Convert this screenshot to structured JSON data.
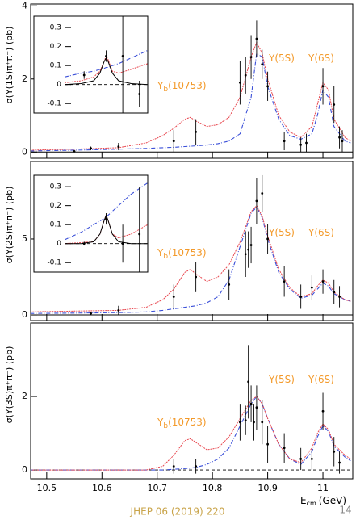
{
  "chart_data": [
    {
      "type": "scatter",
      "ylabel": "σ(Υ(1S)π⁺π⁻) (pb)",
      "ylim": [
        -0.17,
        4.05
      ],
      "yticks": [
        0,
        2,
        4
      ],
      "points": {
        "color": "#000000",
        "x": [
          10.55,
          10.58,
          10.63,
          10.73,
          10.77,
          10.85,
          10.86,
          10.87,
          10.88,
          10.89,
          10.9,
          10.93,
          10.96,
          10.97,
          11.0,
          11.02,
          11.03,
          11.035
        ],
        "values": [
          0.02,
          0.1,
          0.15,
          0.3,
          0.55,
          1.9,
          2.1,
          2.6,
          3.1,
          2.4,
          1.8,
          0.3,
          0.2,
          0.25,
          1.8,
          1.3,
          0.4,
          0.3
        ],
        "errors": [
          0.03,
          0.05,
          0.1,
          0.3,
          0.35,
          0.6,
          0.5,
          0.6,
          0.5,
          0.4,
          0.4,
          0.25,
          0.2,
          0.25,
          0.5,
          0.5,
          0.3,
          0.3
        ]
      },
      "fit": {
        "color": "#e8474f",
        "x": [
          10.47,
          10.55,
          10.63,
          10.68,
          10.71,
          10.73,
          10.75,
          10.76,
          10.77,
          10.79,
          10.81,
          10.83,
          10.85,
          10.87,
          10.88,
          10.89,
          10.9,
          10.92,
          10.94,
          10.96,
          10.98,
          10.99,
          11.0,
          11.01,
          11.02,
          11.04,
          11.05
        ],
        "values": [
          0.05,
          0.08,
          0.12,
          0.25,
          0.45,
          0.65,
          0.9,
          0.95,
          0.85,
          0.7,
          0.75,
          0.95,
          1.5,
          2.6,
          3.0,
          2.7,
          2.0,
          1.0,
          0.55,
          0.4,
          0.7,
          1.3,
          1.9,
          1.7,
          0.9,
          0.4,
          0.3
        ]
      },
      "background": {
        "color": "#3a4fd8",
        "x": [
          10.47,
          10.55,
          10.63,
          10.68,
          10.71,
          10.73,
          10.75,
          10.76,
          10.77,
          10.79,
          10.81,
          10.83,
          10.85,
          10.87,
          10.88,
          10.89,
          10.9,
          10.92,
          10.94,
          10.96,
          10.98,
          10.99,
          11.0,
          11.01,
          11.02,
          11.04,
          11.05
        ],
        "values": [
          0.03,
          0.05,
          0.08,
          0.1,
          0.12,
          0.13,
          0.15,
          0.16,
          0.17,
          0.19,
          0.23,
          0.3,
          0.5,
          1.5,
          2.7,
          2.6,
          1.8,
          0.9,
          0.45,
          0.35,
          0.5,
          1.0,
          1.7,
          1.5,
          0.7,
          0.3,
          0.25
        ]
      },
      "annotations": [
        {
          "text": "Y",
          "sub": "b",
          "tail": "(10753)"
        },
        {
          "text": "Υ(5S)"
        },
        {
          "text": "Υ(6S)"
        }
      ]
    },
    {
      "type": "scatter",
      "xlim": [
        10.48,
        10.68
      ],
      "ylim": [
        -0.15,
        0.36
      ],
      "yticks": [
        0.3,
        0.2,
        0.1,
        0,
        -0.1
      ],
      "points": {
        "color": "#000000",
        "x": [
          10.527,
          10.58,
          10.62,
          10.66
        ],
        "values": [
          0.05,
          0.15,
          0.15,
          -0.05
        ],
        "errors": [
          0.02,
          0.03,
          0.35,
          0.07
        ]
      },
      "fit": {
        "color": "#e8474f",
        "x": [
          10.48,
          10.52,
          10.55,
          10.565,
          10.575,
          10.58,
          10.585,
          10.595,
          10.61,
          10.64,
          10.68
        ],
        "values": [
          0.01,
          0.02,
          0.04,
          0.07,
          0.12,
          0.15,
          0.13,
          0.07,
          0.06,
          0.08,
          0.11
        ]
      },
      "background": {
        "color": "#3a4fd8",
        "x": [
          10.48,
          10.52,
          10.55,
          10.565,
          10.575,
          10.58,
          10.585,
          10.595,
          10.61,
          10.64,
          10.68
        ],
        "values": [
          0.04,
          0.06,
          0.07,
          0.08,
          0.085,
          0.09,
          0.09,
          0.1,
          0.11,
          0.14,
          0.18
        ]
      },
      "peak": {
        "color": "#000000",
        "x": [
          10.48,
          10.52,
          10.55,
          10.565,
          10.575,
          10.58,
          10.585,
          10.595,
          10.61,
          10.64,
          10.68
        ],
        "values": [
          0,
          0.005,
          0.02,
          0.06,
          0.12,
          0.14,
          0.12,
          0.06,
          0.02,
          0.005,
          0
        ]
      }
    },
    {
      "type": "scatter",
      "ylabel": "σ(Υ(2S)π⁺π⁻) (pb)",
      "ylim": [
        -0.37,
        10.1
      ],
      "yticks": [
        0,
        5
      ],
      "points": {
        "color": "#000000",
        "x": [
          10.58,
          10.63,
          10.73,
          10.77,
          10.83,
          10.86,
          10.865,
          10.87,
          10.88,
          10.89,
          10.9,
          10.93,
          10.96,
          10.98,
          11.0,
          11.02,
          11.03
        ],
        "values": [
          0.1,
          0.3,
          1.2,
          2.5,
          2.0,
          4.0,
          4.3,
          4.6,
          7.5,
          8.0,
          5.0,
          2.2,
          1.2,
          1.8,
          2.2,
          1.5,
          1.2
        ],
        "errors": [
          0.1,
          0.3,
          0.8,
          1.0,
          1.0,
          1.5,
          1.2,
          1.2,
          1.5,
          1.2,
          1.0,
          1.0,
          0.8,
          0.8,
          0.8,
          0.8,
          0.7
        ]
      },
      "fit": {
        "color": "#e8474f",
        "x": [
          10.47,
          10.55,
          10.63,
          10.68,
          10.71,
          10.73,
          10.75,
          10.76,
          10.77,
          10.79,
          10.81,
          10.83,
          10.85,
          10.87,
          10.88,
          10.89,
          10.9,
          10.92,
          10.94,
          10.96,
          10.98,
          10.99,
          11.0,
          11.01,
          11.02,
          11.04,
          11.05
        ],
        "values": [
          0.2,
          0.25,
          0.3,
          0.5,
          1.0,
          1.7,
          2.8,
          3.0,
          2.7,
          2.2,
          2.5,
          3.3,
          4.8,
          6.8,
          7.2,
          6.5,
          5.2,
          3.0,
          1.8,
          1.2,
          1.4,
          1.9,
          2.3,
          2.1,
          1.5,
          1.0,
          0.9
        ]
      },
      "background": {
        "color": "#3a4fd8",
        "x": [
          10.47,
          10.55,
          10.63,
          10.68,
          10.71,
          10.73,
          10.75,
          10.76,
          10.77,
          10.79,
          10.81,
          10.83,
          10.85,
          10.87,
          10.88,
          10.89,
          10.9,
          10.92,
          10.94,
          10.96,
          10.98,
          10.99,
          11.0,
          11.01,
          11.02,
          11.04,
          11.05
        ],
        "values": [
          0.1,
          0.12,
          0.15,
          0.2,
          0.3,
          0.4,
          0.5,
          0.55,
          0.6,
          0.8,
          1.2,
          2.3,
          4.5,
          6.7,
          7.1,
          6.4,
          5.0,
          2.8,
          1.7,
          1.1,
          1.3,
          1.7,
          2.1,
          1.9,
          1.4,
          1.0,
          0.9
        ]
      },
      "annotations": [
        {
          "text": "Y",
          "sub": "b",
          "tail": "(10753)"
        },
        {
          "text": "Υ(5S)"
        },
        {
          "text": "Υ(6S)"
        }
      ]
    },
    {
      "type": "scatter",
      "xlim": [
        10.48,
        10.68
      ],
      "ylim": [
        -0.15,
        0.36
      ],
      "yticks": [
        0.3,
        0.2,
        0.1,
        0,
        -0.1
      ],
      "points": {
        "color": "#000000",
        "x": [
          10.527,
          10.58,
          10.62,
          10.66
        ],
        "values": [
          0,
          0.13,
          0,
          0.05
        ],
        "errors": [
          0.01,
          0.03,
          0.1,
          0.25
        ]
      },
      "fit": {
        "color": "#e8474f",
        "x": [
          10.48,
          10.52,
          10.55,
          10.565,
          10.575,
          10.58,
          10.585,
          10.595,
          10.61,
          10.64,
          10.68
        ],
        "values": [
          0,
          0.005,
          0.01,
          0.05,
          0.12,
          0.15,
          0.12,
          0.05,
          0.03,
          0.05,
          0.1
        ]
      },
      "background": {
        "color": "#3a4fd8",
        "x": [
          10.48,
          10.52,
          10.55,
          10.565,
          10.575,
          10.58,
          10.585,
          10.595,
          10.61,
          10.64,
          10.68
        ],
        "values": [
          0.02,
          0.06,
          0.1,
          0.12,
          0.13,
          0.14,
          0.15,
          0.17,
          0.2,
          0.26,
          0.32
        ]
      },
      "peak": {
        "color": "#000000",
        "x": [
          10.48,
          10.52,
          10.55,
          10.565,
          10.575,
          10.58,
          10.585,
          10.595,
          10.61,
          10.64,
          10.68
        ],
        "values": [
          0,
          0,
          0.01,
          0.05,
          0.12,
          0.15,
          0.12,
          0.05,
          0.01,
          0,
          0
        ]
      }
    },
    {
      "type": "scatter",
      "ylabel": "σ(Υ(3S)π⁺π⁻) (pb)",
      "ylim": [
        -0.24,
        4.0
      ],
      "yticks": [
        0,
        2
      ],
      "xlim": [
        10.471,
        11.054
      ],
      "xticks": [
        10.5,
        10.6,
        10.7,
        10.8,
        10.9,
        11
      ],
      "xlabel": {
        "text": "E",
        "sub": "cm",
        "tail": "(GeV)"
      },
      "points": {
        "color": "#000000",
        "x": [
          10.73,
          10.77,
          10.85,
          10.86,
          10.865,
          10.87,
          10.875,
          10.88,
          10.89,
          10.9,
          10.93,
          10.96,
          10.98,
          11.0,
          11.02,
          11.03
        ],
        "values": [
          0.1,
          0.1,
          1.3,
          1.35,
          2.4,
          1.8,
          1.3,
          1.7,
          1.3,
          0.7,
          0.6,
          0.3,
          0.3,
          1.6,
          0.5,
          0.2
        ],
        "errors": [
          0.2,
          0.2,
          0.5,
          0.4,
          1.0,
          0.5,
          0.5,
          0.6,
          0.6,
          0.5,
          0.4,
          0.3,
          0.3,
          0.5,
          0.4,
          0.3
        ]
      },
      "fit": {
        "color": "#e8474f",
        "x": [
          10.47,
          10.55,
          10.63,
          10.68,
          10.71,
          10.73,
          10.75,
          10.76,
          10.77,
          10.79,
          10.81,
          10.83,
          10.85,
          10.87,
          10.88,
          10.89,
          10.9,
          10.92,
          10.94,
          10.96,
          10.98,
          10.99,
          11.0,
          11.01,
          11.02,
          11.04,
          11.05
        ],
        "values": [
          0,
          0,
          0,
          0,
          0.1,
          0.4,
          0.8,
          0.85,
          0.75,
          0.55,
          0.6,
          0.9,
          1.4,
          1.9,
          2.0,
          1.8,
          1.4,
          0.7,
          0.3,
          0.2,
          0.6,
          1.0,
          1.25,
          1.1,
          0.7,
          0.4,
          0.3
        ]
      },
      "background": {
        "color": "#3a4fd8",
        "x": [
          10.47,
          10.55,
          10.63,
          10.68,
          10.71,
          10.73,
          10.75,
          10.76,
          10.77,
          10.79,
          10.81,
          10.83,
          10.85,
          10.87,
          10.88,
          10.89,
          10.9,
          10.92,
          10.94,
          10.96,
          10.98,
          10.99,
          11.0,
          11.01,
          11.02,
          11.04,
          11.05
        ],
        "values": [
          0,
          0,
          0,
          0,
          0,
          0.02,
          0.04,
          0.05,
          0.07,
          0.15,
          0.3,
          0.6,
          1.2,
          1.8,
          2.0,
          1.8,
          1.4,
          0.7,
          0.3,
          0.15,
          0.5,
          0.9,
          1.2,
          1.05,
          0.65,
          0.35,
          0.25
        ]
      },
      "annotations": [
        {
          "text": "Y",
          "sub": "b",
          "tail": "(10753)"
        },
        {
          "text": "Υ(5S)"
        },
        {
          "text": "Υ(6S)"
        }
      ]
    }
  ],
  "footer": {
    "citation": "JHEP 06 (2019) 220",
    "page": "14"
  }
}
